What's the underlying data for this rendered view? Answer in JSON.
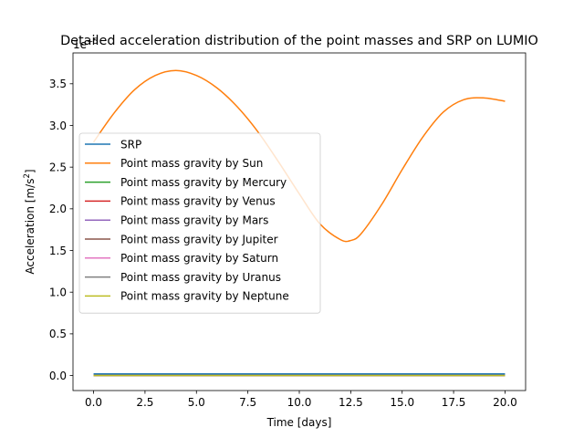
{
  "chart_data": {
    "type": "line",
    "title": "Detailed acceleration distribution of the point masses and SRP on LUMIO",
    "xlabel": "Time [days]",
    "ylabel_prefix": "Acceleration [m/s",
    "ylabel_exp": "2",
    "ylabel_suffix": "]",
    "offset_base": "1e",
    "offset_exp": "−5",
    "xlim": [
      -1.0,
      21.0
    ],
    "ylim": [
      -0.18,
      3.87
    ],
    "x_ticks": [
      0,
      2.5,
      5,
      7.5,
      10,
      12.5,
      15,
      17.5,
      20
    ],
    "x_tick_labels": [
      "0.0",
      "2.5",
      "5.0",
      "7.5",
      "10.0",
      "12.5",
      "15.0",
      "17.5",
      "20.0"
    ],
    "y_ticks": [
      0,
      0.5,
      1,
      1.5,
      2,
      2.5,
      3,
      3.5
    ],
    "y_tick_labels": [
      "0.0",
      "0.5",
      "1.0",
      "1.5",
      "2.0",
      "2.5",
      "3.0",
      "3.5"
    ],
    "grid": false,
    "legend_position": "center-left",
    "x": [
      0,
      1,
      2,
      3,
      4,
      5,
      6,
      7,
      8,
      9,
      10,
      11,
      12,
      12.5,
      13,
      14,
      15,
      16,
      17,
      18,
      19,
      20
    ],
    "series": [
      {
        "name": "SRP",
        "color": "#1f77b4",
        "values": [
          0.02,
          0.02,
          0.02,
          0.02,
          0.02,
          0.02,
          0.02,
          0.02,
          0.02,
          0.02,
          0.02,
          0.02,
          0.02,
          0.02,
          0.02,
          0.02,
          0.02,
          0.02,
          0.02,
          0.02,
          0.02,
          0.02
        ]
      },
      {
        "name": "Point mass gravity by Sun",
        "color": "#ff7f0e",
        "values": [
          2.8,
          3.15,
          3.43,
          3.6,
          3.66,
          3.6,
          3.45,
          3.22,
          2.92,
          2.56,
          2.18,
          1.82,
          1.63,
          1.62,
          1.7,
          2.05,
          2.47,
          2.86,
          3.16,
          3.31,
          3.33,
          3.29
        ]
      },
      {
        "name": "Point mass gravity by Mercury",
        "color": "#2ca02c",
        "values": [
          0,
          0,
          0,
          0,
          0,
          0,
          0,
          0,
          0,
          0,
          0,
          0,
          0,
          0,
          0,
          0,
          0,
          0,
          0,
          0,
          0,
          0
        ]
      },
      {
        "name": "Point mass gravity by Venus",
        "color": "#d62728",
        "values": [
          0,
          0,
          0,
          0,
          0,
          0,
          0,
          0,
          0,
          0,
          0,
          0,
          0,
          0,
          0,
          0,
          0,
          0,
          0,
          0,
          0,
          0
        ]
      },
      {
        "name": "Point mass gravity by Mars",
        "color": "#9467bd",
        "values": [
          0,
          0,
          0,
          0,
          0,
          0,
          0,
          0,
          0,
          0,
          0,
          0,
          0,
          0,
          0,
          0,
          0,
          0,
          0,
          0,
          0,
          0
        ]
      },
      {
        "name": "Point mass gravity by Jupiter",
        "color": "#8c564b",
        "values": [
          0,
          0,
          0,
          0,
          0,
          0,
          0,
          0,
          0,
          0,
          0,
          0,
          0,
          0,
          0,
          0,
          0,
          0,
          0,
          0,
          0,
          0
        ]
      },
      {
        "name": "Point mass gravity by Saturn",
        "color": "#e377c2",
        "values": [
          0,
          0,
          0,
          0,
          0,
          0,
          0,
          0,
          0,
          0,
          0,
          0,
          0,
          0,
          0,
          0,
          0,
          0,
          0,
          0,
          0,
          0
        ]
      },
      {
        "name": "Point mass gravity by Uranus",
        "color": "#7f7f7f",
        "values": [
          0,
          0,
          0,
          0,
          0,
          0,
          0,
          0,
          0,
          0,
          0,
          0,
          0,
          0,
          0,
          0,
          0,
          0,
          0,
          0,
          0,
          0
        ]
      },
      {
        "name": "Point mass gravity by Neptune",
        "color": "#bcbd22",
        "values": [
          0,
          0,
          0,
          0,
          0,
          0,
          0,
          0,
          0,
          0,
          0,
          0,
          0,
          0,
          0,
          0,
          0,
          0,
          0,
          0,
          0,
          0
        ]
      }
    ]
  }
}
